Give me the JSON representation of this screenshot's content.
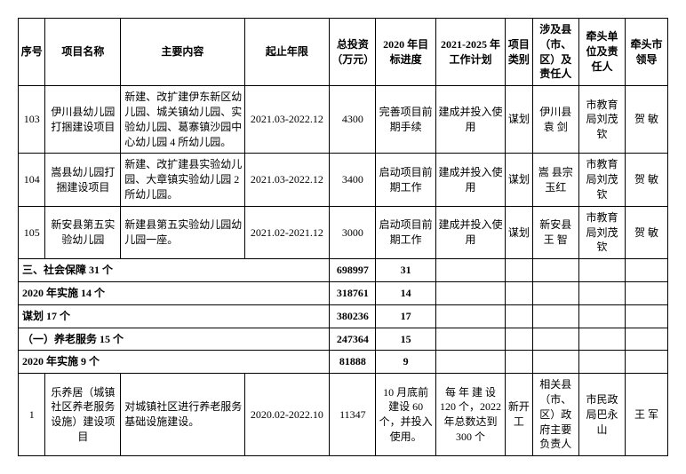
{
  "headers": {
    "seq": "序号",
    "name": "项目名称",
    "content": "主要内容",
    "period": "起止年限",
    "invest": "总投资（万元）",
    "prog2020": "2020 年目标进度",
    "plan2021": "2021-2025 年工作计划",
    "cat": "项目类别",
    "county": "涉及县（市、区）及责任人",
    "lead": "牵头单位及责任人",
    "leader": "牵头市领导"
  },
  "rows": [
    {
      "seq": "103",
      "name": "伊川县幼儿园打捆建设项目",
      "content": "新建、改扩建伊东新区幼儿园、城关镇幼儿园、实验幼儿园、葛寨镇沙园中心幼儿园 4 所幼儿园。",
      "period": "2021.03-2022.12",
      "invest": "4300",
      "prog2020": "完善项目前期手续",
      "plan2021": "建成并投入使用",
      "cat": "谋划",
      "county": "伊川县袁 剑",
      "lead": "市教育局刘茂钦",
      "leader": "贺 敏"
    },
    {
      "seq": "104",
      "name": "嵩县幼儿园打捆建设项目",
      "content": "新建、改扩建县实验幼儿园、大章镇实验幼儿园 2 所幼儿园。",
      "period": "2021.03-2022.12",
      "invest": "3400",
      "prog2020": "启动项目前期工作",
      "plan2021": "建成并投入使用",
      "cat": "谋划",
      "county": "嵩  县宗玉红",
      "lead": "市教育局刘茂钦",
      "leader": "贺 敏"
    },
    {
      "seq": "105",
      "name": "新安县第五实验幼儿园",
      "content": "新建县第五实验幼儿园幼儿园一座。",
      "period": "2021.02-2021.12",
      "invest": "3000",
      "prog2020": "启动项目前期工作",
      "plan2021": "建成并投入使用",
      "cat": "谋划",
      "county": "新安县王 智",
      "lead": "市教育局刘茂钦",
      "leader": "贺 敏"
    }
  ],
  "sections": [
    {
      "label": "三、社会保障 31 个",
      "invest": "698997",
      "prog": "31"
    },
    {
      "label": "2020 年实施 14 个",
      "invest": "318761",
      "prog": "14"
    },
    {
      "label": "谋划 17 个",
      "invest": "380236",
      "prog": "17"
    },
    {
      "label": "（一）养老服务 15 个",
      "invest": "247364",
      "prog": "15"
    },
    {
      "label": "2020 年实施 9 个",
      "invest": "81888",
      "prog": "9"
    }
  ],
  "rows2": [
    {
      "seq": "1",
      "name": "乐养居（城镇社区养老服务设施）建设项目",
      "content": "对城镇社区进行养老服务基础设施建设。",
      "period": "2020.02-2022.10",
      "invest": "11347",
      "prog2020": "10 月底前建设 60 个，并投入使用。",
      "plan2021": "每 年 建 设120 个，2022年总数达到300 个",
      "cat": "新开工",
      "county": "相关县（市、区）政府主要负责人",
      "lead": "市民政局巴永山",
      "leader": "王 军"
    }
  ]
}
